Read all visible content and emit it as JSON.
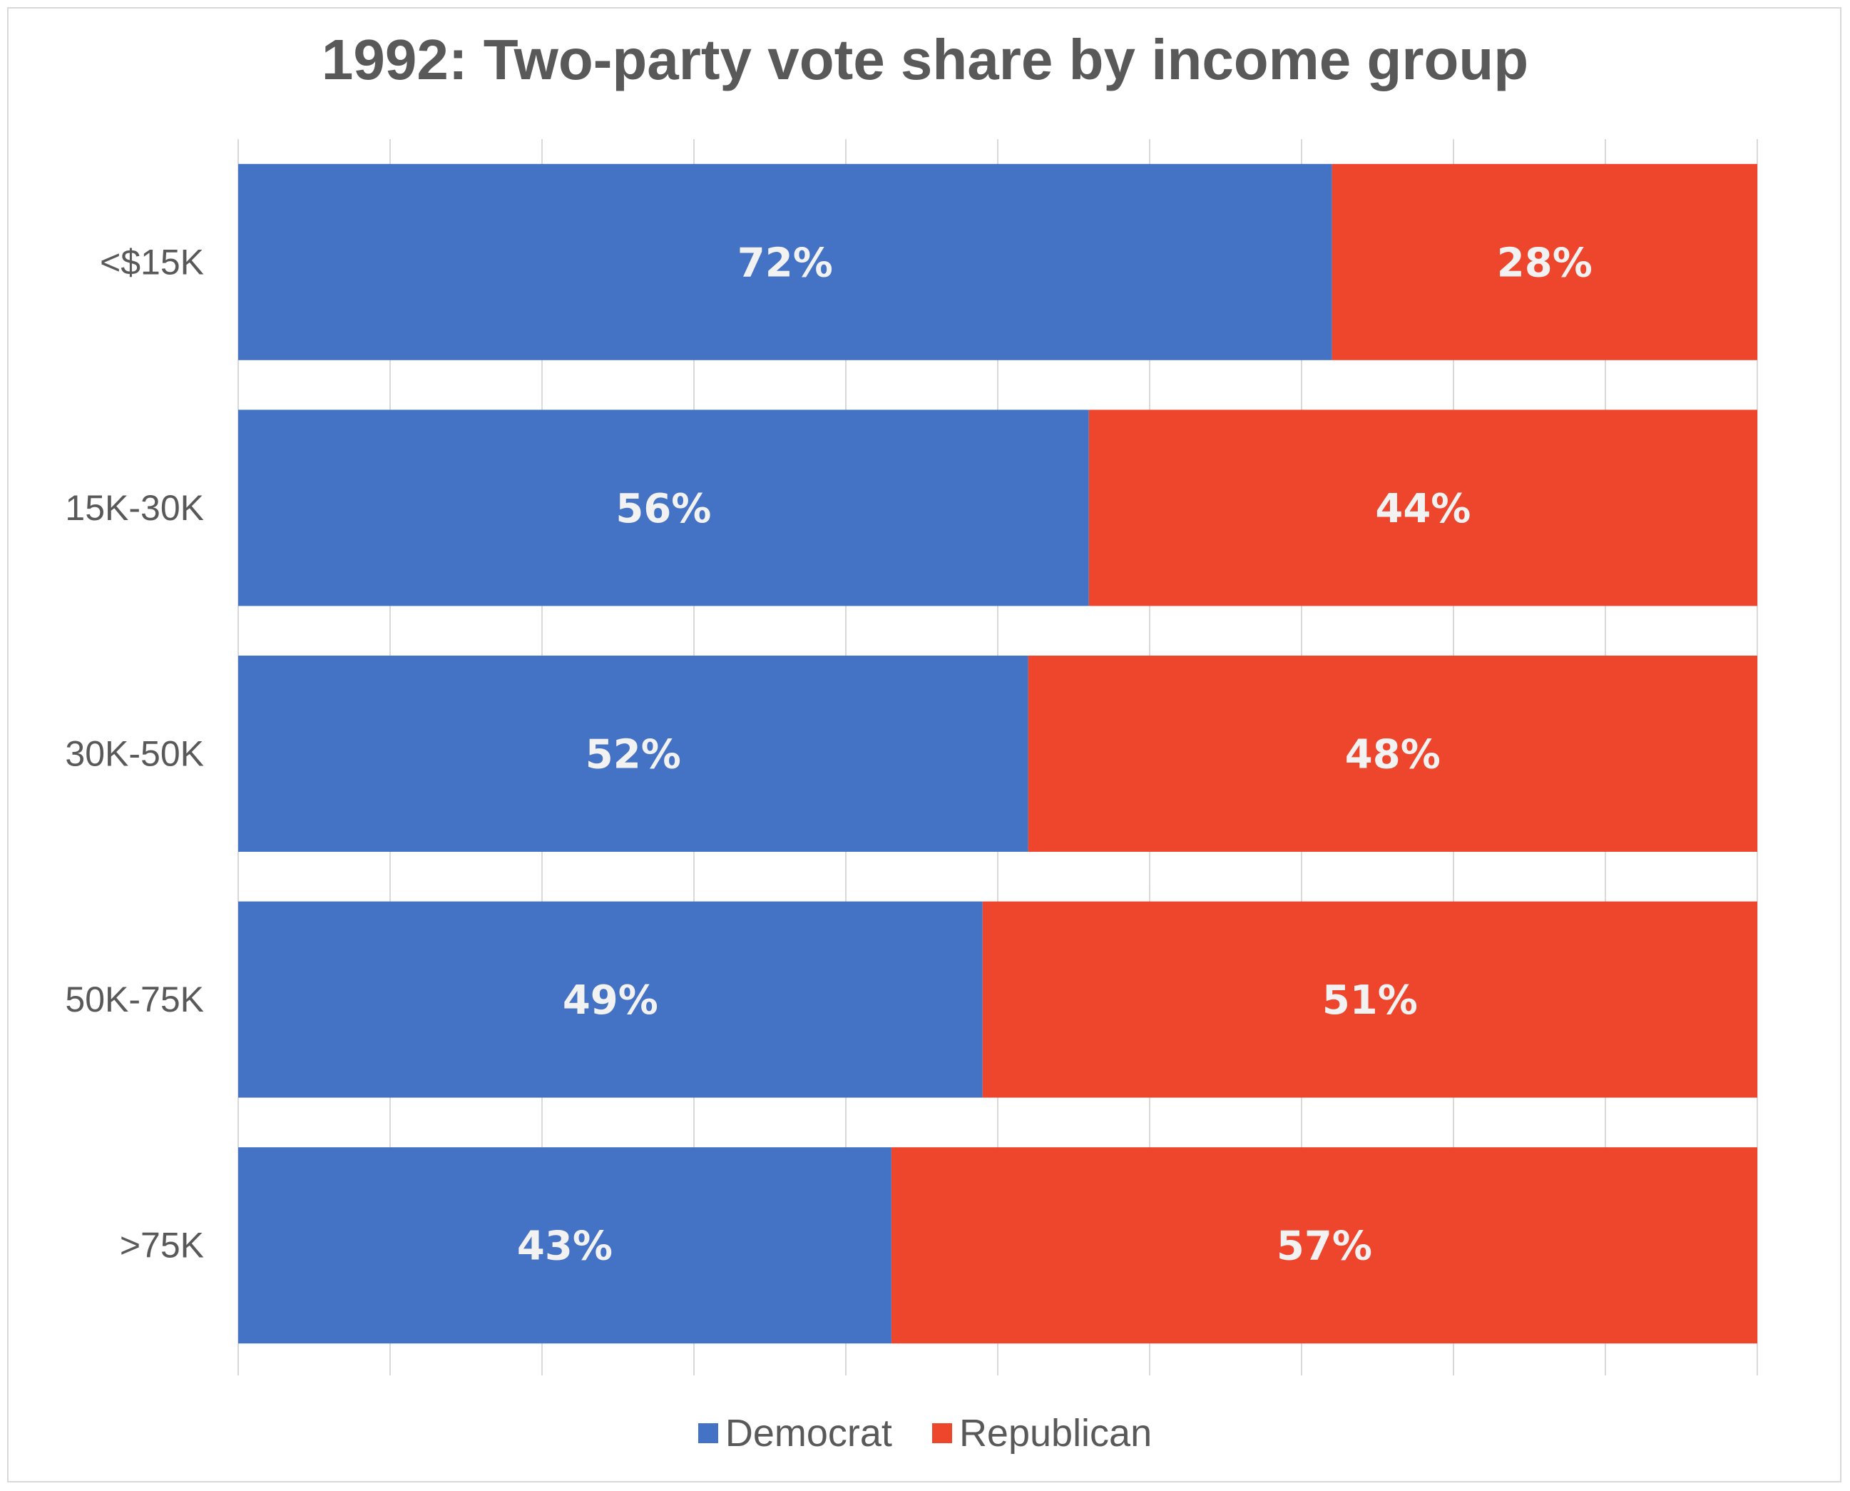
{
  "chart_data": {
    "type": "bar",
    "orientation": "horizontal",
    "stacked": "100%",
    "title": "1992: Two-party vote share by income group",
    "categories": [
      "<$15K",
      "15K-30K",
      "30K-50K",
      "50K-75K",
      ">75K"
    ],
    "series": [
      {
        "name": "Democrat",
        "color": "#4472c4",
        "values": [
          72,
          56,
          52,
          49,
          43
        ]
      },
      {
        "name": "Republican",
        "color": "#ee462d",
        "values": [
          28,
          44,
          48,
          51,
          57
        ]
      }
    ],
    "value_suffix": "%",
    "xlim": [
      0,
      100
    ],
    "grid": true,
    "legend_position": "bottom"
  }
}
